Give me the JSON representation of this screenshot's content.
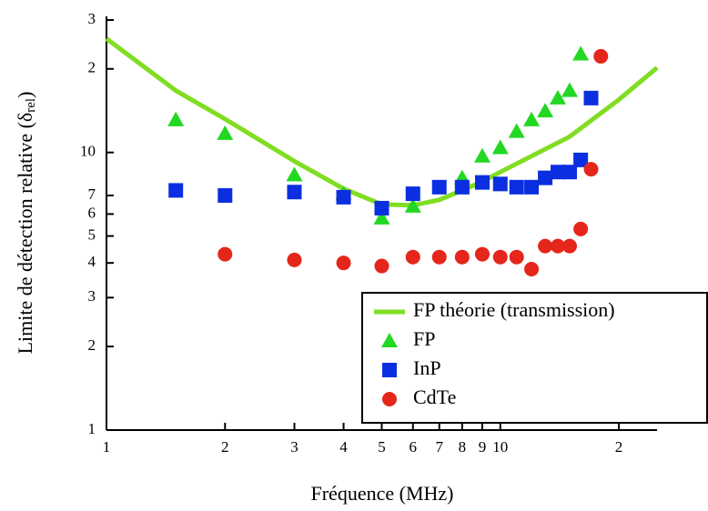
{
  "chart_data": {
    "type": "line",
    "xlabel": "Fréquence (MHz)",
    "ylabel": [
      "Limite de détection relative (δ",
      "rel",
      ")"
    ],
    "xscale": "log",
    "yscale": "log",
    "xlim": [
      1,
      25
    ],
    "ylim": [
      1,
      30
    ],
    "xticks": [
      1,
      2,
      3,
      4,
      5,
      6,
      7,
      8,
      9,
      10,
      {
        "value": 20,
        "label": "2"
      }
    ],
    "yticks": [
      1,
      2,
      3,
      4,
      5,
      6,
      7,
      10,
      {
        "value": 20,
        "label": "2"
      },
      {
        "value": 30,
        "label": "3"
      }
    ],
    "legend": "lower right",
    "series": [
      {
        "name": "FP théorie (transmission)",
        "color": "#80dd22",
        "marker": "line",
        "x": [
          1,
          1.5,
          2,
          3,
          4,
          5,
          6,
          7,
          8,
          9,
          10,
          15,
          20,
          25
        ],
        "values": [
          25.7,
          16.7,
          13.2,
          9.3,
          7.4,
          6.5,
          6.45,
          6.75,
          7.3,
          7.85,
          8.5,
          11.4,
          15.5,
          20.2
        ]
      },
      {
        "name": "FP",
        "color": "#22d822",
        "marker": "triangle",
        "x": [
          1.5,
          2,
          3,
          4,
          5,
          6,
          8,
          9,
          10,
          11,
          12,
          13,
          14,
          15,
          16
        ],
        "values": [
          13.1,
          11.7,
          8.3,
          7.1,
          5.8,
          6.4,
          8.1,
          9.7,
          10.4,
          11.9,
          13.1,
          14.1,
          15.7,
          16.7,
          22.6
        ]
      },
      {
        "name": "InP",
        "color": "#0b2fe0",
        "marker": "square",
        "x": [
          1.5,
          2,
          3,
          4,
          5,
          6,
          7,
          8,
          9,
          10,
          11,
          12,
          13,
          14,
          15,
          16,
          17
        ],
        "values": [
          7.3,
          7.0,
          7.2,
          6.9,
          6.3,
          7.1,
          7.5,
          7.5,
          7.8,
          7.7,
          7.5,
          7.5,
          8.1,
          8.5,
          8.5,
          9.4,
          15.7
        ]
      },
      {
        "name": "CdTe",
        "color": "#e5261a",
        "marker": "circle",
        "x": [
          2,
          3,
          4,
          5,
          6,
          7,
          8,
          9,
          10,
          11,
          12,
          13,
          14,
          15,
          16,
          17,
          18
        ],
        "values": [
          4.3,
          4.1,
          4.0,
          3.9,
          4.2,
          4.2,
          4.2,
          4.3,
          4.2,
          4.2,
          3.8,
          4.6,
          4.6,
          4.6,
          5.3,
          8.7,
          22.2
        ]
      }
    ]
  }
}
